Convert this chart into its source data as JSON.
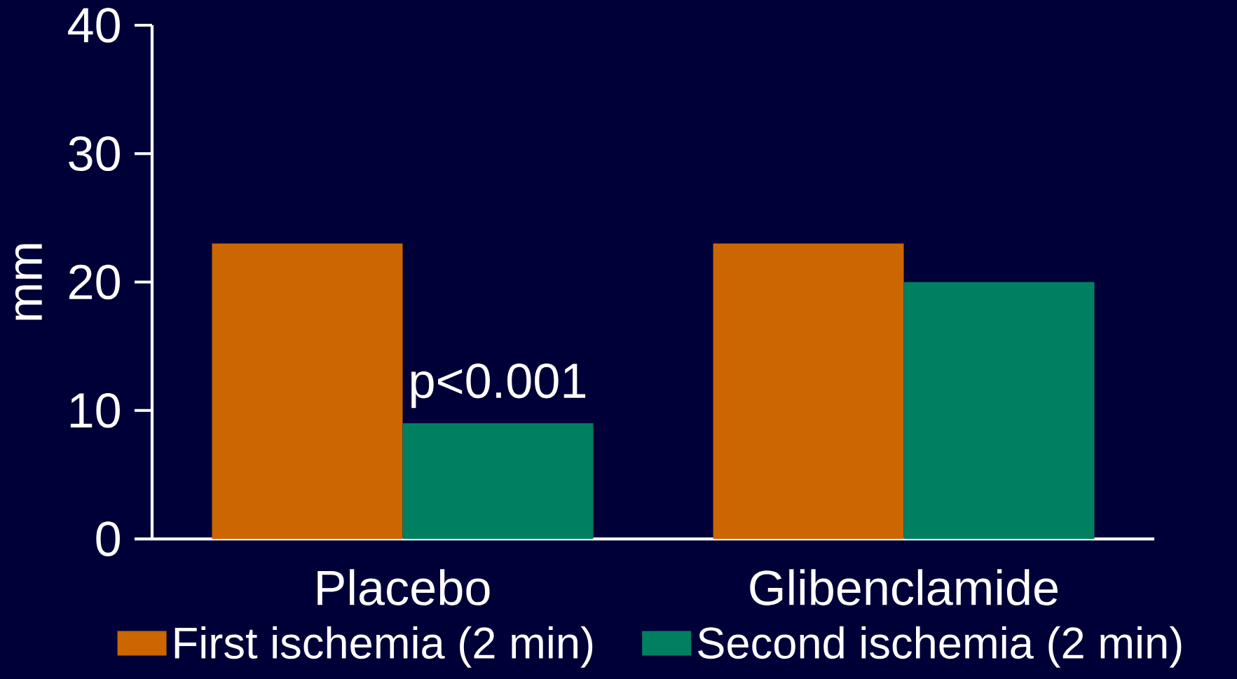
{
  "chart_data": {
    "type": "bar",
    "ylabel": "mm",
    "categories": [
      "Placebo",
      "Glibenclamide"
    ],
    "series": [
      {
        "name": "First ischemia (2 min)",
        "color": "#cc6600",
        "values": [
          23,
          23
        ]
      },
      {
        "name": "Second ischemia (2 min)",
        "color": "#008060",
        "values": [
          9,
          20
        ]
      }
    ],
    "ylim": [
      0,
      40
    ],
    "yticks": [
      0,
      10,
      20,
      30,
      40
    ],
    "annotations": [
      {
        "text": "p<0.001",
        "x": "Placebo",
        "y": 9
      }
    ],
    "legend": "bottom"
  }
}
